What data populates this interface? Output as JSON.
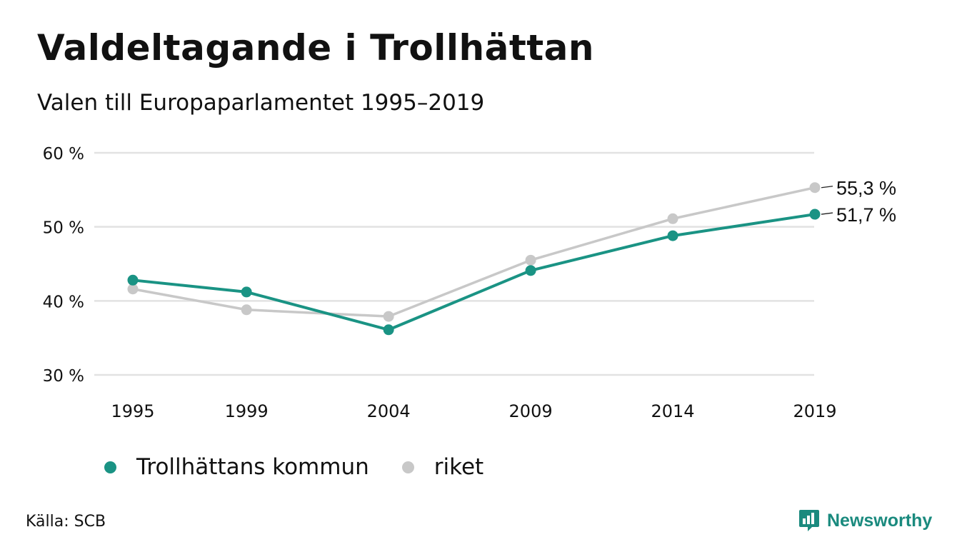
{
  "header": {
    "title": "Valdeltagande i Trollhättan",
    "subtitle": "Valen till Europaparlamentet 1995–2019"
  },
  "colors": {
    "kommun": "#1a9384",
    "riket": "#c8c8c8",
    "grid": "#e2e2e2",
    "brand": "#1a8a7e"
  },
  "chart_data": {
    "type": "line",
    "x": [
      1995,
      1999,
      2004,
      2009,
      2014,
      2019
    ],
    "xticks": [
      "1995",
      "1999",
      "2004",
      "2009",
      "2014",
      "2019"
    ],
    "yticks": [
      30,
      40,
      50,
      60
    ],
    "ytick_labels": [
      "30 %",
      "40 %",
      "50 %",
      "60 %"
    ],
    "ylim": [
      30,
      60
    ],
    "grid": "horizontal",
    "series": [
      {
        "name": "riket",
        "color_key": "riket",
        "values": [
          41.6,
          38.8,
          37.9,
          45.5,
          51.1,
          55.3
        ],
        "end_label": "55,3 %"
      },
      {
        "name": "Trollhättans kommun",
        "color_key": "kommun",
        "values": [
          42.8,
          41.2,
          36.1,
          44.1,
          48.8,
          51.7
        ],
        "end_label": "51,7 %"
      }
    ],
    "legend": {
      "position": "bottom-left",
      "items": [
        "Trollhättans kommun",
        "riket"
      ]
    }
  },
  "footer": {
    "source": "Källa: SCB",
    "brand": "Newsworthy",
    "brand_icon": "bar-chart-speech-bubble-icon"
  }
}
